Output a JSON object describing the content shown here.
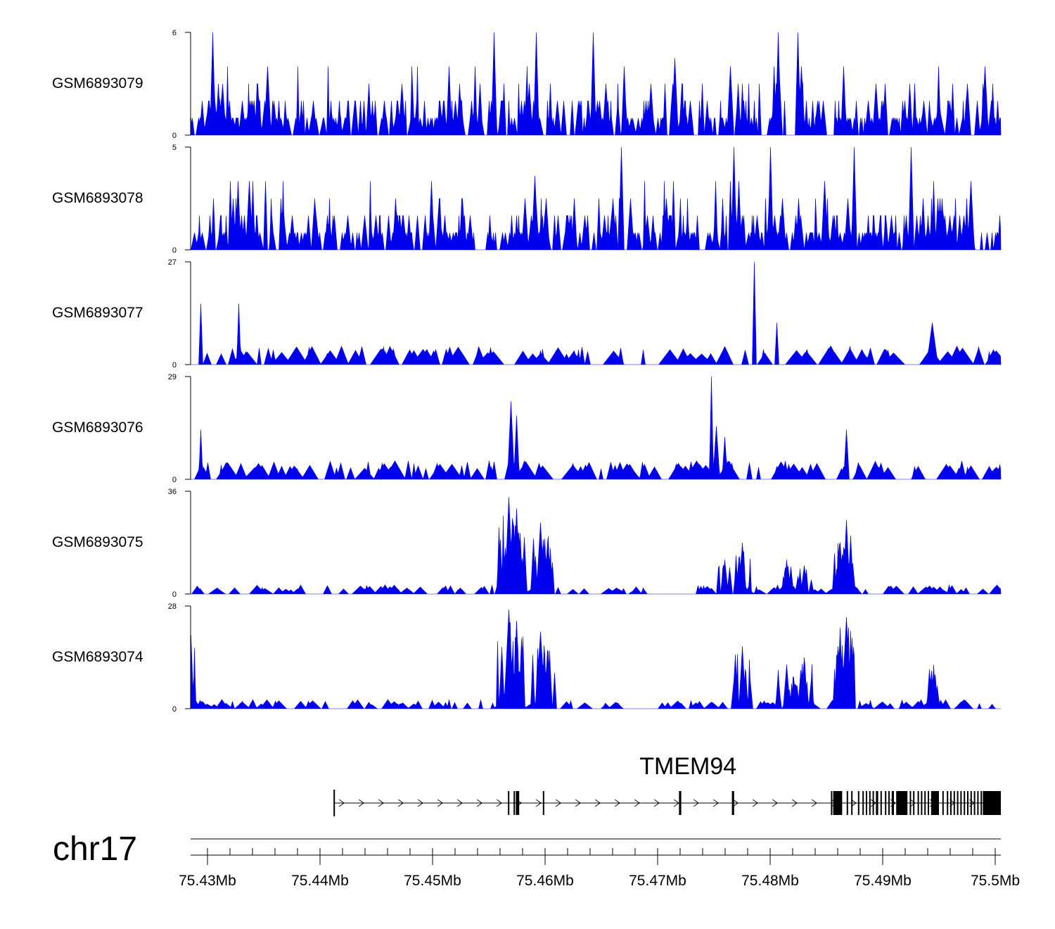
{
  "chart_data": {
    "type": "area",
    "chromosome": "chr17",
    "x_range_mb": [
      75.4285,
      75.5005
    ],
    "fill_color": "#0000EE",
    "tracks": [
      {
        "name": "GSM6893079",
        "ymax": 6,
        "yticks": [
          "0",
          "6"
        ],
        "profile": "sparse_spiky",
        "seed": 11,
        "peaks": [
          [
            75.4305,
            6.0,
            0.0006
          ],
          [
            75.4555,
            6.0,
            0.0006
          ],
          [
            75.4592,
            6.0,
            0.0006
          ],
          [
            75.4643,
            6.0,
            0.0006
          ],
          [
            75.4807,
            6.0,
            0.0006
          ],
          [
            75.4825,
            6.0,
            0.0006
          ],
          [
            75.4715,
            4.5,
            0.0007
          ]
        ]
      },
      {
        "name": "GSM6893078",
        "ymax": 5,
        "yticks": [
          "0",
          "5"
        ],
        "profile": "sparse_spiky",
        "seed": 23,
        "peaks": [
          [
            75.4668,
            5.0,
            0.0006
          ],
          [
            75.4768,
            5.0,
            0.0006
          ],
          [
            75.48,
            5.0,
            0.0006
          ],
          [
            75.4875,
            5.0,
            0.0006
          ],
          [
            75.4925,
            5.0,
            0.0006
          ],
          [
            75.4591,
            3.6,
            0.0008
          ]
        ]
      },
      {
        "name": "GSM6893077",
        "ymax": 27,
        "yticks": [
          "0",
          "27"
        ],
        "profile": "sparse_triangles",
        "seed": 37,
        "peaks": [
          [
            75.4294,
            16,
            0.0003
          ],
          [
            75.4328,
            16,
            0.0003
          ],
          [
            75.4786,
            27,
            0.0003
          ],
          [
            75.4806,
            11,
            0.0003
          ],
          [
            75.4944,
            11,
            0.0012
          ]
        ]
      },
      {
        "name": "GSM6893076",
        "ymax": 29,
        "yticks": [
          "0",
          "29"
        ],
        "profile": "sparse_triangles",
        "seed": 41,
        "peaks": [
          [
            75.457,
            22,
            0.0008
          ],
          [
            75.4575,
            18,
            0.0006
          ],
          [
            75.4748,
            29,
            0.0003
          ],
          [
            75.4752,
            15,
            0.0008
          ],
          [
            75.476,
            12,
            0.0006
          ],
          [
            75.4868,
            14,
            0.0005
          ],
          [
            75.4294,
            14,
            0.0003
          ]
        ]
      },
      {
        "name": "GSM6893075",
        "ymax": 36,
        "yticks": [
          "0",
          "36"
        ],
        "profile": "clustered",
        "seed": 53,
        "peaks": [
          [
            75.4568,
            34,
            0.0009
          ],
          [
            75.4575,
            30,
            0.0007
          ],
          [
            75.4596,
            25,
            0.0009
          ],
          [
            75.4602,
            18,
            0.0007
          ],
          [
            75.4775,
            18,
            0.0008
          ],
          [
            75.476,
            12,
            0.0007
          ],
          [
            75.4868,
            26,
            0.0008
          ],
          [
            75.4862,
            18,
            0.0008
          ],
          [
            75.4815,
            12,
            0.0006
          ],
          [
            75.483,
            10,
            0.0008
          ]
        ]
      },
      {
        "name": "GSM6893074",
        "ymax": 28,
        "yticks": [
          "0",
          "28"
        ],
        "profile": "clustered",
        "seed": 67,
        "peaks": [
          [
            75.4568,
            27,
            0.001
          ],
          [
            75.4575,
            24,
            0.0008
          ],
          [
            75.4596,
            21,
            0.001
          ],
          [
            75.4602,
            16,
            0.0008
          ],
          [
            75.4285,
            20,
            0.0006
          ],
          [
            75.4775,
            17,
            0.0008
          ],
          [
            75.4868,
            25,
            0.001
          ],
          [
            75.486,
            17,
            0.0009
          ],
          [
            75.4815,
            12,
            0.0008
          ],
          [
            75.483,
            14,
            0.0008
          ],
          [
            75.4945,
            12,
            0.0004
          ]
        ]
      }
    ],
    "gene": {
      "name": "TMEM94",
      "strand": "+",
      "start_mb": 75.4412,
      "end_mb": 75.5005,
      "exons_mb": [
        [
          75.4412,
          75.4413
        ],
        [
          75.4567,
          75.4568
        ],
        [
          75.4572,
          75.4573
        ],
        [
          75.4574,
          75.4577
        ],
        [
          75.4598,
          75.4599
        ],
        [
          75.4719,
          75.4721
        ],
        [
          75.4766,
          75.4768
        ],
        [
          75.4854,
          75.4855
        ],
        [
          75.4856,
          75.4864
        ],
        [
          75.4868,
          75.4869
        ],
        [
          75.4872,
          75.4873
        ],
        [
          75.4878,
          75.4879
        ],
        [
          75.4882,
          75.4883
        ],
        [
          75.4885,
          75.4886
        ],
        [
          75.4888,
          75.4889
        ],
        [
          75.4891,
          75.4892
        ],
        [
          75.4894,
          75.4896
        ],
        [
          75.4898,
          75.4899
        ],
        [
          75.4902,
          75.4903
        ],
        [
          75.4905,
          75.4906
        ],
        [
          75.4908,
          75.491
        ],
        [
          75.4912,
          75.4922
        ],
        [
          75.4924,
          75.4925
        ],
        [
          75.4927,
          75.4928
        ],
        [
          75.4931,
          75.4932
        ],
        [
          75.4934,
          75.4935
        ],
        [
          75.4937,
          75.4938
        ],
        [
          75.494,
          75.4941
        ],
        [
          75.4943,
          75.495
        ],
        [
          75.4953,
          75.4954
        ],
        [
          75.4957,
          75.4958
        ],
        [
          75.496,
          75.4961
        ],
        [
          75.4963,
          75.4964
        ],
        [
          75.4966,
          75.4967
        ],
        [
          75.4969,
          75.497
        ],
        [
          75.4972,
          75.4973
        ],
        [
          75.4975,
          75.4976
        ],
        [
          75.4978,
          75.4979
        ],
        [
          75.4981,
          75.4982
        ],
        [
          75.4984,
          75.4985
        ],
        [
          75.4987,
          75.4988
        ],
        [
          75.4989,
          75.5005
        ]
      ]
    },
    "x_ticks": [
      {
        "value": 75.43,
        "label": "75.43Mb"
      },
      {
        "value": 75.44,
        "label": "75.44Mb"
      },
      {
        "value": 75.45,
        "label": "75.45Mb"
      },
      {
        "value": 75.46,
        "label": "75.46Mb"
      },
      {
        "value": 75.47,
        "label": "75.47Mb"
      },
      {
        "value": 75.48,
        "label": "75.48Mb"
      },
      {
        "value": 75.49,
        "label": "75.49Mb"
      },
      {
        "value": 75.5,
        "label": "75.5Mb"
      }
    ],
    "minor_tick_step_mb": 0.002
  }
}
